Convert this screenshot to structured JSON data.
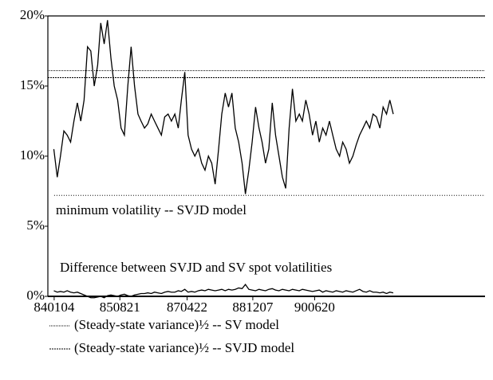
{
  "chart_data": {
    "type": "line",
    "x": [
      "1984-01",
      "1984-02",
      "1984-03",
      "1984-04",
      "1984-05",
      "1984-06",
      "1984-07",
      "1984-08",
      "1984-09",
      "1984-10",
      "1984-11",
      "1984-12",
      "1985-01",
      "1985-02",
      "1985-03",
      "1985-04",
      "1985-05",
      "1985-06",
      "1985-07",
      "1985-08",
      "1985-09",
      "1985-10",
      "1985-11",
      "1985-12",
      "1986-01",
      "1986-02",
      "1986-03",
      "1986-04",
      "1986-05",
      "1986-06",
      "1986-07",
      "1986-08",
      "1986-09",
      "1986-10",
      "1986-11",
      "1986-12",
      "1987-01",
      "1987-02",
      "1987-03",
      "1987-04",
      "1987-05",
      "1987-06",
      "1987-07",
      "1987-08",
      "1987-09",
      "1987-10",
      "1987-11",
      "1987-12",
      "1988-01",
      "1988-02",
      "1988-03",
      "1988-04",
      "1988-05",
      "1988-06",
      "1988-07",
      "1988-08",
      "1988-09",
      "1988-10",
      "1988-11",
      "1988-12",
      "1989-01",
      "1989-02",
      "1989-03",
      "1989-04",
      "1989-05",
      "1989-06",
      "1989-07",
      "1989-08",
      "1989-09",
      "1989-10",
      "1989-11",
      "1989-12",
      "1990-01",
      "1990-02",
      "1990-03",
      "1990-04",
      "1990-05",
      "1990-06",
      "1990-07",
      "1990-08",
      "1990-09",
      "1990-10",
      "1990-11",
      "1990-12",
      "1991-01",
      "1991-02",
      "1991-03",
      "1991-04",
      "1991-05",
      "1991-06",
      "1991-07",
      "1991-08",
      "1991-09",
      "1991-10",
      "1991-11",
      "1991-12",
      "1992-01",
      "1992-02",
      "1992-03",
      "1992-04",
      "1992-05",
      "1992-06"
    ],
    "series": [
      {
        "color": "#000000",
        "values": [
          10.5,
          8.5,
          10,
          11.8,
          11.5,
          11,
          12.5,
          13.8,
          12.5,
          14,
          17.8,
          17.5,
          15,
          16.5,
          19.5,
          18,
          19.7,
          17,
          15,
          14,
          12,
          11.5,
          15,
          17.8,
          15,
          13,
          12.5,
          12,
          12.3,
          13,
          12.5,
          12,
          11.5,
          12.8,
          13,
          12.5,
          13,
          12,
          14,
          16,
          11.5,
          10.5,
          10,
          10.5,
          9.5,
          9,
          10,
          9.5,
          8,
          10.5,
          13,
          14.5,
          13.5,
          14.5,
          12,
          11,
          9.5,
          7.3,
          9,
          11,
          13.5,
          12,
          11,
          9.5,
          10.5,
          13.8,
          11.5,
          10,
          8.5,
          7.7,
          12,
          14.8,
          12.5,
          13,
          12.5,
          14,
          13,
          11.5,
          12.5,
          11,
          12,
          11.5,
          12.5,
          11.5,
          10.5,
          10,
          11,
          10.5,
          9.5,
          10,
          10.8,
          11.5,
          12,
          12.5,
          12,
          13,
          12.8,
          12,
          13.5,
          13,
          14,
          13
        ]
      },
      {
        "color": "#000000",
        "values": [
          0.4,
          0.3,
          0.35,
          0.3,
          0.4,
          0.3,
          0.25,
          0.3,
          0.2,
          0.1,
          0,
          -0.1,
          -0.1,
          -0.05,
          0,
          -0.1,
          0.05,
          0.1,
          0.05,
          0,
          0.1,
          0.15,
          0.05,
          0,
          0.1,
          0.15,
          0.2,
          0.2,
          0.25,
          0.2,
          0.3,
          0.25,
          0.2,
          0.3,
          0.35,
          0.3,
          0.3,
          0.4,
          0.35,
          0.5,
          0.3,
          0.35,
          0.3,
          0.4,
          0.45,
          0.4,
          0.5,
          0.45,
          0.4,
          0.45,
          0.5,
          0.4,
          0.5,
          0.45,
          0.5,
          0.6,
          0.55,
          0.85,
          0.5,
          0.45,
          0.4,
          0.5,
          0.45,
          0.4,
          0.5,
          0.55,
          0.45,
          0.4,
          0.5,
          0.45,
          0.4,
          0.5,
          0.45,
          0.4,
          0.5,
          0.45,
          0.4,
          0.35,
          0.4,
          0.45,
          0.3,
          0.4,
          0.35,
          0.3,
          0.4,
          0.35,
          0.3,
          0.4,
          0.35,
          0.3,
          0.4,
          0.5,
          0.35,
          0.3,
          0.4,
          0.3,
          0.3,
          0.25,
          0.3,
          0.2,
          0.3,
          0.25
        ]
      }
    ],
    "reference_lines": [
      {
        "name": "(Steady-state variance)½ -- SV model",
        "value": 16.1,
        "dash": "1,1"
      },
      {
        "name": "(Steady-state variance)½ -- SVJD model",
        "value": 15.6,
        "dash": "2,1"
      },
      {
        "name": "minimum volatility -- SVJD model",
        "value": 7.2,
        "dash": "1,2"
      }
    ],
    "annotations": [
      "Difference between SVJD and SV spot volatilities"
    ],
    "xlim": [
      "1983-11-08",
      "1994-09-10"
    ],
    "xticks": [
      {
        "value": "1984-01-04",
        "label": "840104"
      },
      {
        "value": "1985-08-21",
        "label": "850821"
      },
      {
        "value": "1987-04-22",
        "label": "870422"
      },
      {
        "value": "1988-12-07",
        "label": "881207"
      },
      {
        "value": "1990-06-20",
        "label": "900620"
      }
    ],
    "ylim": [
      0,
      20
    ],
    "yticks": [
      {
        "value": 0,
        "label": "0%"
      },
      {
        "value": 5,
        "label": "5%"
      },
      {
        "value": 10,
        "label": "10%"
      },
      {
        "value": 15,
        "label": "15%"
      },
      {
        "value": 20,
        "label": "20%"
      }
    ]
  }
}
